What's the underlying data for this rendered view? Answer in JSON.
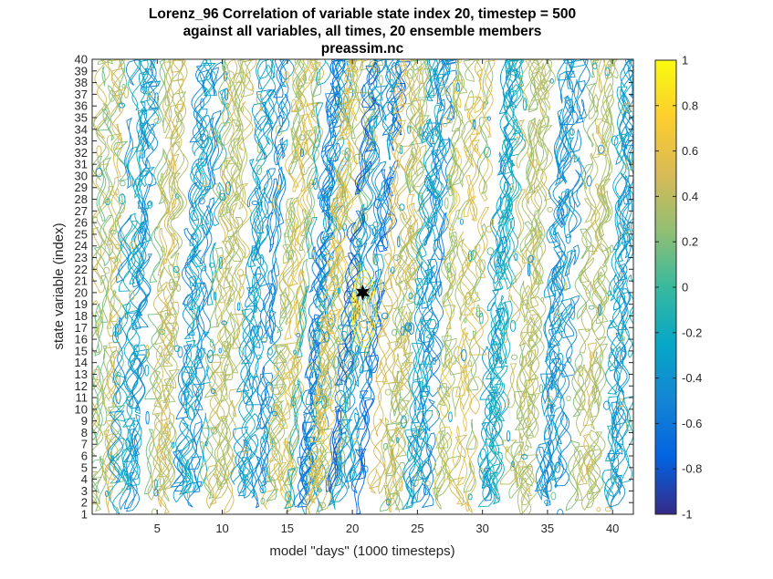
{
  "chart_data": {
    "type": "heatmap",
    "subtype": "contour",
    "title": [
      "Lorenz_96 Correlation of variable state index 20, timestep = 500",
      "against all variables, all times, 20 ensemble members",
      "preassim.nc"
    ],
    "xlabel": "model \"days\" (1000 timesteps)",
    "ylabel": "state variable (index)",
    "xlim": [
      0,
      41.6
    ],
    "ylim": [
      1,
      40
    ],
    "xticks": [
      5,
      10,
      15,
      20,
      25,
      30,
      35,
      40
    ],
    "yticks": [
      1,
      2,
      3,
      4,
      5,
      6,
      7,
      8,
      9,
      10,
      11,
      12,
      13,
      14,
      15,
      16,
      17,
      18,
      19,
      20,
      21,
      22,
      23,
      24,
      25,
      26,
      27,
      28,
      29,
      30,
      31,
      32,
      33,
      34,
      35,
      36,
      37,
      38,
      39,
      40
    ],
    "colorbar": {
      "limits": [
        -1,
        1
      ],
      "ticks": [
        -1,
        -0.8,
        -0.6,
        -0.4,
        -0.2,
        0,
        0.2,
        0.4,
        0.6,
        0.8,
        1
      ],
      "tick_labels": [
        "-1",
        "-0.8",
        "-0.6",
        "-0.4",
        "-0.2",
        "0",
        "0.2",
        "0.4",
        "0.6",
        "0.8",
        "1"
      ],
      "colormap": "parula"
    },
    "marker": {
      "shape": "star",
      "x": 20.8,
      "y": 20,
      "color": "#000000"
    },
    "contour_bands": [
      {
        "x": 1.2,
        "slope": 0.02,
        "width": 0.9,
        "sign": 1,
        "strength": 0.35
      },
      {
        "x": 3.2,
        "slope": 0.04,
        "width": 1.0,
        "sign": -1,
        "strength": 0.4
      },
      {
        "x": 5.5,
        "slope": 0.03,
        "width": 0.9,
        "sign": 1,
        "strength": 0.35
      },
      {
        "x": 8.2,
        "slope": 0.05,
        "width": 1.1,
        "sign": -1,
        "strength": 0.45
      },
      {
        "x": 10.2,
        "slope": 0.04,
        "width": 1.0,
        "sign": 1,
        "strength": 0.4
      },
      {
        "x": 12.8,
        "slope": 0.05,
        "width": 1.2,
        "sign": -1,
        "strength": 0.5
      },
      {
        "x": 15.2,
        "slope": 0.06,
        "width": 1.1,
        "sign": 1,
        "strength": 0.5
      },
      {
        "x": 17.5,
        "slope": 0.07,
        "width": 1.3,
        "sign": -1,
        "strength": 0.6
      },
      {
        "x": 19.2,
        "slope": 0.08,
        "width": 1.2,
        "sign": 1,
        "strength": 0.6
      },
      {
        "x": 21.0,
        "slope": 0.09,
        "width": 1.4,
        "sign": -1,
        "strength": 0.75
      },
      {
        "x": 23.5,
        "slope": 0.06,
        "width": 1.2,
        "sign": 1,
        "strength": 0.5
      },
      {
        "x": 25.5,
        "slope": 0.05,
        "width": 1.1,
        "sign": -1,
        "strength": 0.5
      },
      {
        "x": 28.5,
        "slope": 0.04,
        "width": 1.3,
        "sign": 1,
        "strength": 0.55
      },
      {
        "x": 31.0,
        "slope": 0.05,
        "width": 1.0,
        "sign": -1,
        "strength": 0.45
      },
      {
        "x": 33.5,
        "slope": 0.04,
        "width": 1.1,
        "sign": 1,
        "strength": 0.4
      },
      {
        "x": 36.0,
        "slope": 0.05,
        "width": 1.0,
        "sign": -1,
        "strength": 0.4
      },
      {
        "x": 38.5,
        "slope": 0.04,
        "width": 1.0,
        "sign": 1,
        "strength": 0.35
      },
      {
        "x": 40.8,
        "slope": 0.03,
        "width": 0.8,
        "sign": -1,
        "strength": 0.3
      }
    ]
  }
}
